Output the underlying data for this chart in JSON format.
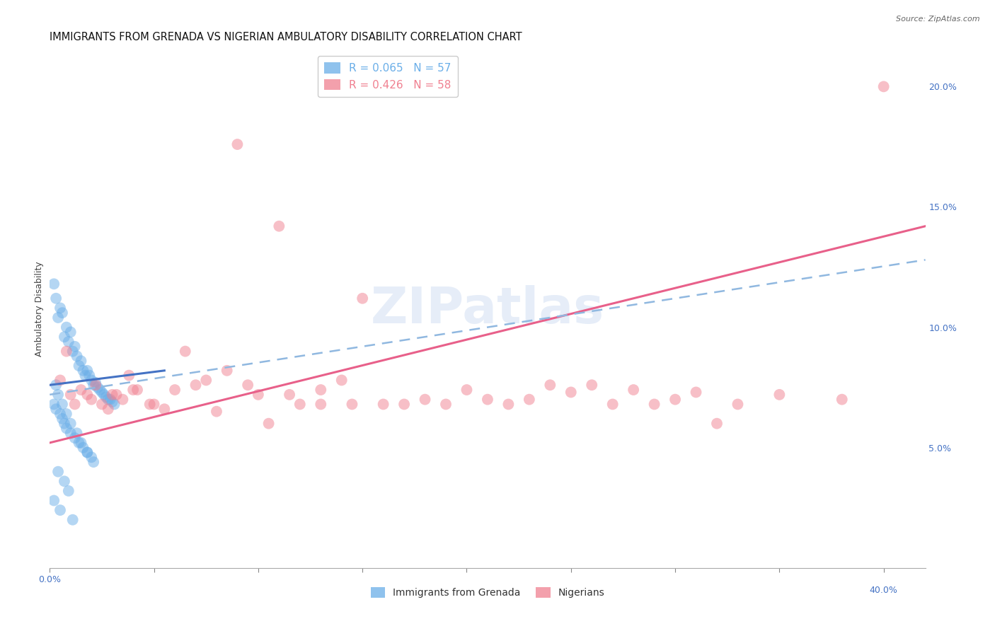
{
  "title": "IMMIGRANTS FROM GRENADA VS NIGERIAN AMBULATORY DISABILITY CORRELATION CHART",
  "source": "Source: ZipAtlas.com",
  "ylabel": "Ambulatory Disability",
  "background_color": "#ffffff",
  "watermark": "ZIPatlas",
  "xlim": [
    0.0,
    0.42
  ],
  "ylim": [
    0.0,
    0.215
  ],
  "x_ticks": [
    0.0,
    0.05,
    0.1,
    0.15,
    0.2,
    0.25,
    0.3,
    0.35,
    0.4
  ],
  "x_tick_labels_show": {
    "0.0": "0.0%",
    "0.40": "40.0%"
  },
  "y_ticks_right": [
    0.05,
    0.1,
    0.15,
    0.2
  ],
  "y_tick_labels_right": [
    "5.0%",
    "10.0%",
    "15.0%",
    "20.0%"
  ],
  "legend_entries": [
    {
      "label": "R = 0.065   N = 57",
      "color": "#6aaee8"
    },
    {
      "label": "R = 0.426   N = 58",
      "color": "#f08090"
    }
  ],
  "legend_bottom": [
    {
      "label": "Immigrants from Grenada",
      "color": "#6aaee8"
    },
    {
      "label": "Nigerians",
      "color": "#f08090"
    }
  ],
  "blue_scatter_x": [
    0.002,
    0.003,
    0.004,
    0.005,
    0.006,
    0.007,
    0.008,
    0.009,
    0.01,
    0.011,
    0.012,
    0.013,
    0.014,
    0.015,
    0.016,
    0.017,
    0.018,
    0.019,
    0.02,
    0.021,
    0.022,
    0.023,
    0.024,
    0.025,
    0.026,
    0.027,
    0.028,
    0.029,
    0.03,
    0.031,
    0.002,
    0.003,
    0.005,
    0.006,
    0.007,
    0.008,
    0.01,
    0.012,
    0.014,
    0.016,
    0.018,
    0.02,
    0.003,
    0.004,
    0.006,
    0.008,
    0.01,
    0.013,
    0.015,
    0.018,
    0.021,
    0.004,
    0.007,
    0.009,
    0.002,
    0.005,
    0.011
  ],
  "blue_scatter_y": [
    0.118,
    0.112,
    0.104,
    0.108,
    0.106,
    0.096,
    0.1,
    0.094,
    0.098,
    0.09,
    0.092,
    0.088,
    0.084,
    0.086,
    0.082,
    0.08,
    0.082,
    0.08,
    0.078,
    0.076,
    0.077,
    0.075,
    0.074,
    0.073,
    0.072,
    0.071,
    0.07,
    0.07,
    0.069,
    0.068,
    0.068,
    0.066,
    0.064,
    0.062,
    0.06,
    0.058,
    0.056,
    0.054,
    0.052,
    0.05,
    0.048,
    0.046,
    0.076,
    0.072,
    0.068,
    0.064,
    0.06,
    0.056,
    0.052,
    0.048,
    0.044,
    0.04,
    0.036,
    0.032,
    0.028,
    0.024,
    0.02
  ],
  "pink_scatter_x": [
    0.005,
    0.01,
    0.015,
    0.02,
    0.025,
    0.03,
    0.035,
    0.04,
    0.05,
    0.06,
    0.07,
    0.08,
    0.09,
    0.1,
    0.11,
    0.12,
    0.13,
    0.14,
    0.15,
    0.16,
    0.17,
    0.18,
    0.19,
    0.2,
    0.21,
    0.22,
    0.23,
    0.24,
    0.25,
    0.26,
    0.27,
    0.28,
    0.29,
    0.3,
    0.31,
    0.32,
    0.33,
    0.35,
    0.38,
    0.4,
    0.008,
    0.012,
    0.018,
    0.022,
    0.028,
    0.032,
    0.038,
    0.042,
    0.048,
    0.055,
    0.065,
    0.075,
    0.085,
    0.095,
    0.105,
    0.115,
    0.13,
    0.145
  ],
  "pink_scatter_y": [
    0.078,
    0.072,
    0.074,
    0.07,
    0.068,
    0.072,
    0.07,
    0.074,
    0.068,
    0.074,
    0.076,
    0.065,
    0.176,
    0.072,
    0.142,
    0.068,
    0.074,
    0.078,
    0.112,
    0.068,
    0.068,
    0.07,
    0.068,
    0.074,
    0.07,
    0.068,
    0.07,
    0.076,
    0.073,
    0.076,
    0.068,
    0.074,
    0.068,
    0.07,
    0.073,
    0.06,
    0.068,
    0.072,
    0.07,
    0.2,
    0.09,
    0.068,
    0.072,
    0.076,
    0.066,
    0.072,
    0.08,
    0.074,
    0.068,
    0.066,
    0.09,
    0.078,
    0.082,
    0.076,
    0.06,
    0.072,
    0.068,
    0.068
  ],
  "blue_line_x": [
    0.0,
    0.055
  ],
  "blue_line_y": [
    0.076,
    0.082
  ],
  "pink_line_x": [
    0.0,
    0.42
  ],
  "pink_line_y": [
    0.052,
    0.142
  ],
  "dashed_line_x": [
    0.0,
    0.42
  ],
  "dashed_line_y": [
    0.072,
    0.128
  ],
  "blue_scatter_color": "#6aaee8",
  "pink_scatter_color": "#f08090",
  "blue_line_color": "#4472c4",
  "pink_line_color": "#e8608a",
  "dashed_line_color": "#90b8e0",
  "grid_color": "#d8d8d8",
  "title_fontsize": 10.5,
  "axis_label_fontsize": 9,
  "tick_fontsize": 9,
  "watermark_color": "#c8d8f0",
  "watermark_fontsize": 52
}
